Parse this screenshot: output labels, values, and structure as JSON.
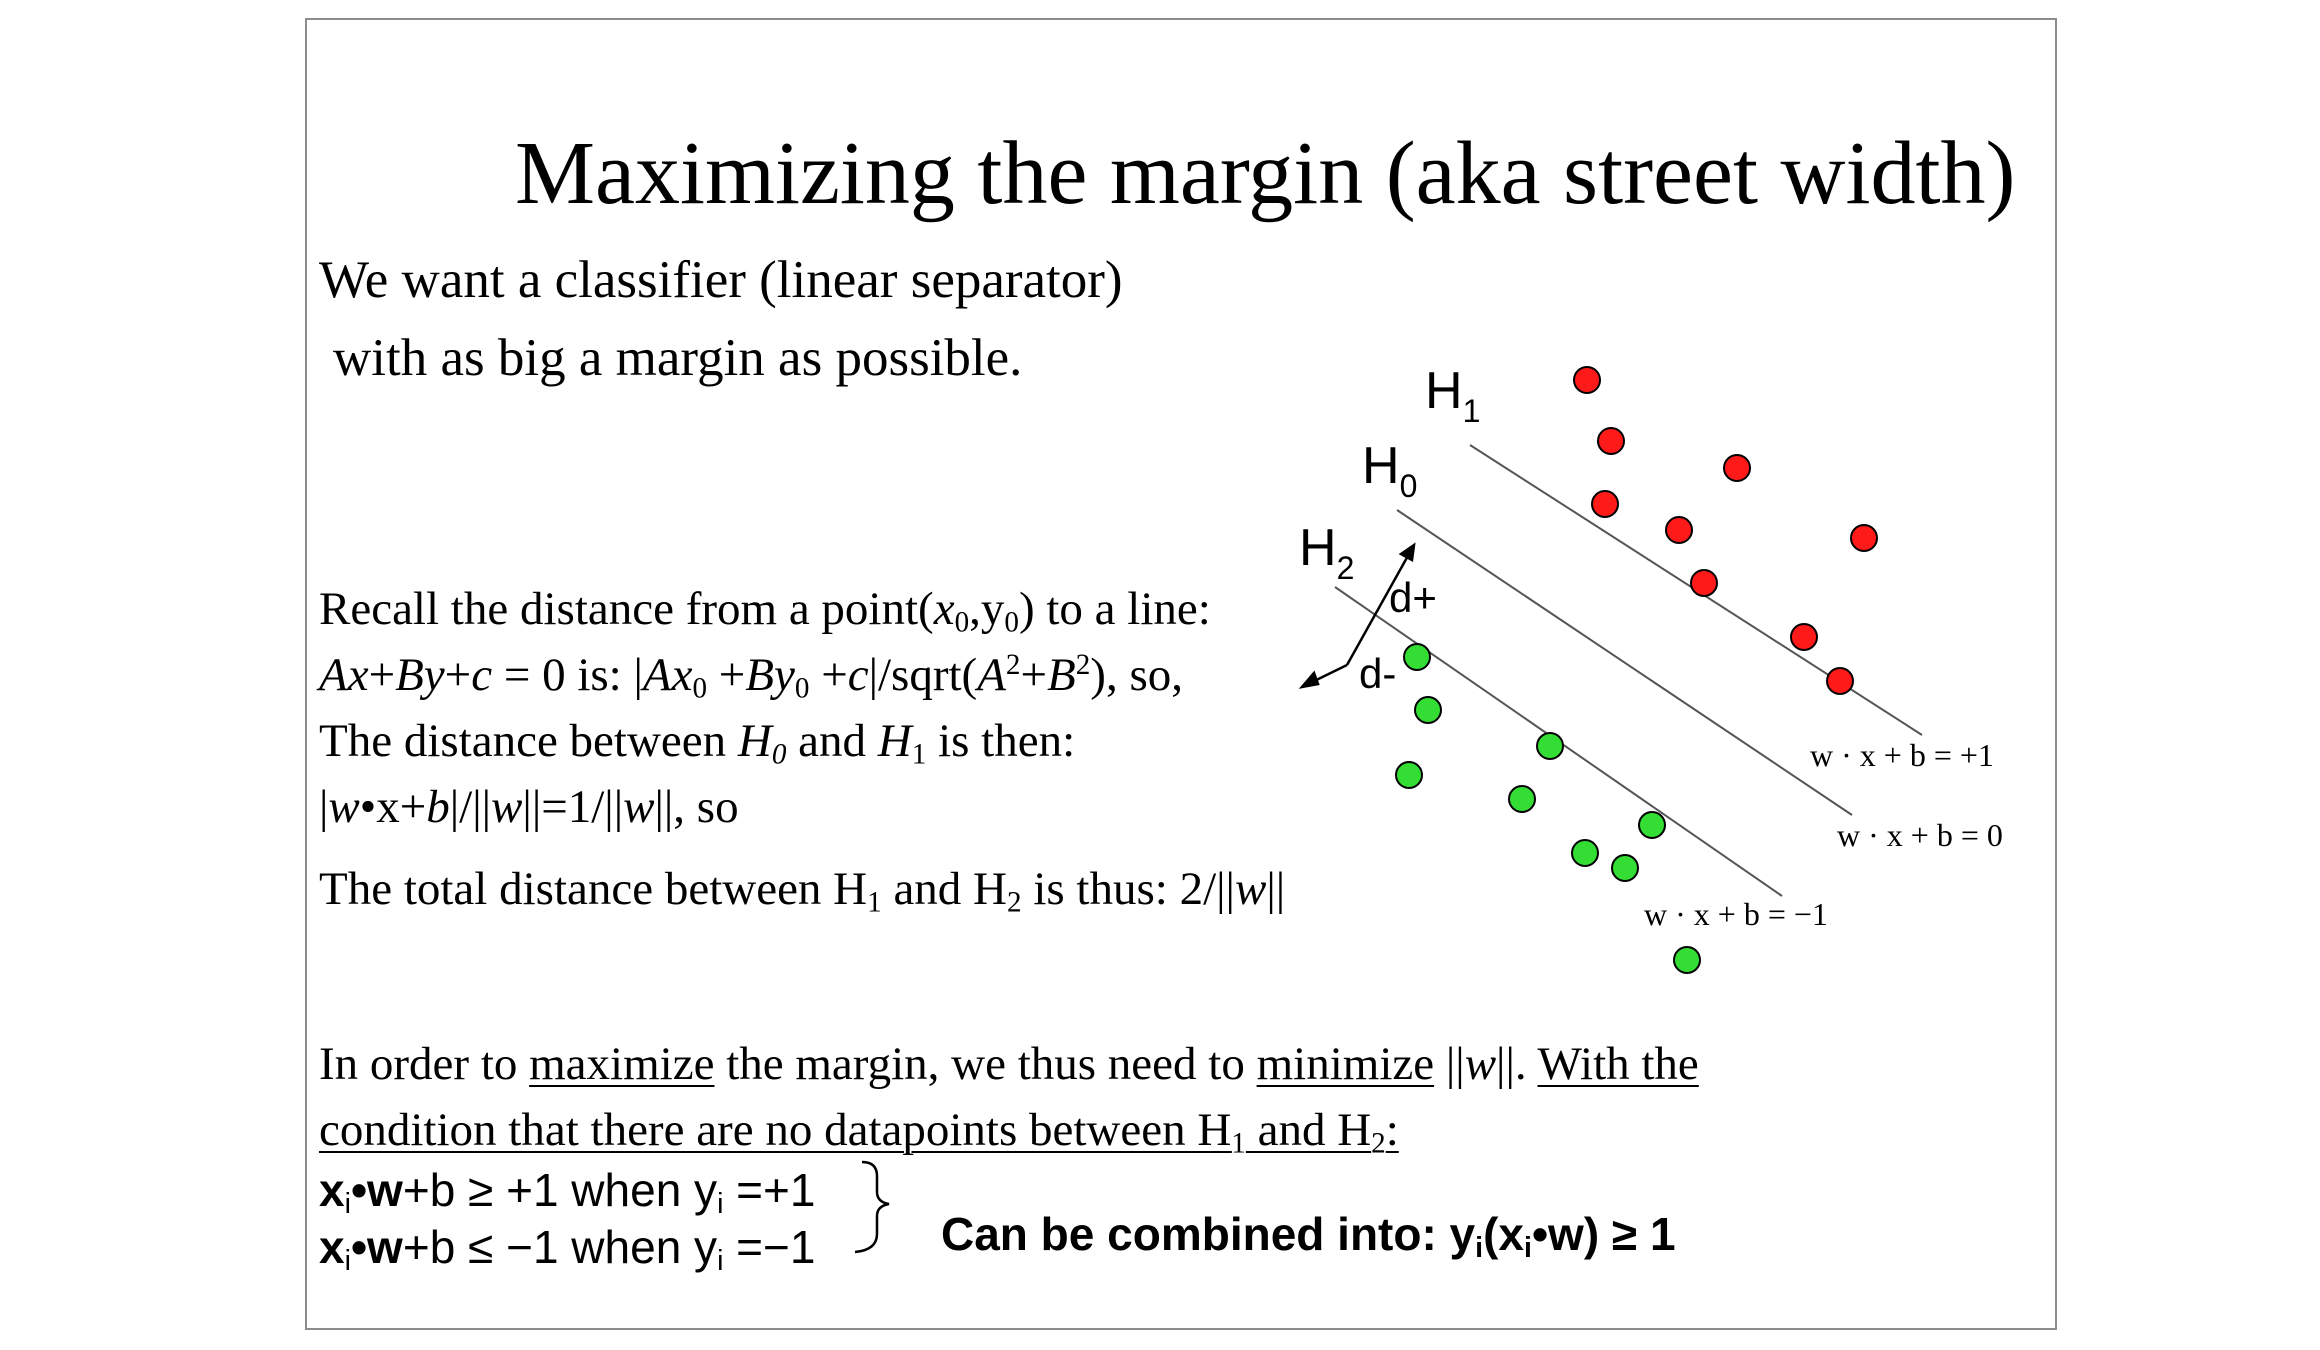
{
  "title": "Maximizing the margin (aka street width)",
  "intro": {
    "line1": "We want a classifier (linear separator)",
    "line2": "with as big a margin as possible."
  },
  "distance": {
    "recall": "Recall the distance from a point(",
    "to_line": ") to a line:",
    "formula_tail": ", so,",
    "between_h0_h1_a": "The distance between ",
    "between_and": " and ",
    "between_tail": " is then:",
    "w_norm_tail": "||=1/||",
    "so": "||, so",
    "total_a": "The total  distance between H",
    "total_and": " and H",
    "total_tail": " is thus: 2/||",
    "total_end": "||"
  },
  "conclusion": {
    "in_order": "In order to ",
    "maximize": "maximize",
    "margin_need": " the margin, we thus need to ",
    "minimize": "minimize",
    "norm": " ||w||. ",
    "with_the": "With the ",
    "condition": "condition that there are no datapoints between H",
    "and_h": " and H",
    "colon": ":"
  },
  "constraints": {
    "c1_tail": "+b ≥ +1 when y",
    "c1_val": " =+1",
    "c2_tail": "+b ≤ −1 when y",
    "c2_val": " =−1",
    "combined": "Can be combined into: y",
    "combined_tail": ") ≥ 1"
  },
  "diagram": {
    "labels": {
      "h1": "H",
      "h1_sub": "1",
      "h0": "H",
      "h0_sub": "0",
      "h2": "H",
      "h2_sub": "2",
      "d_plus": "d+",
      "d_minus": "d-",
      "eq_plus": "w · x + b = +1",
      "eq_zero": "w · x + b = 0",
      "eq_minus": "w · x + b = −1"
    },
    "colors": {
      "positive": "#ff1a1a",
      "negative": "#33dd33",
      "line": "#555555"
    }
  }
}
